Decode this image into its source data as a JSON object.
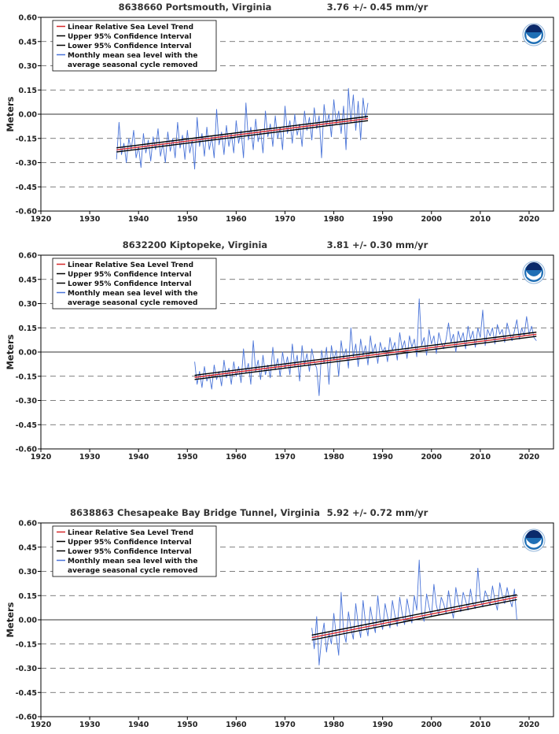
{
  "colors": {
    "trend": "#d62728",
    "ci": "#000000",
    "monthly": "#4a74d8",
    "grid_dash": "#555555",
    "zero_line": "#333333",
    "noaa_blue": "#1f6fb5",
    "noaa_dark": "#0b2a6b"
  },
  "legend_entries": [
    "Linear Relative Sea Level Trend",
    "Upper 95% Confidence Interval",
    "Lower 95% Confidence Interval",
    "Monthly mean sea level with the",
    "average seasonal cycle removed"
  ],
  "chart_data": [
    {
      "type": "line",
      "title": "8638660 Portsmouth, Virginia",
      "rate_label": "3.76 +/-  0.45 mm/yr",
      "ylabel": "Meters",
      "xlim": [
        1920,
        2025
      ],
      "ylim": [
        -0.6,
        0.6
      ],
      "xticks": [
        "1920",
        "1930",
        "1940",
        "1950",
        "1960",
        "1970",
        "1980",
        "1990",
        "2000",
        "2010",
        "2020"
      ],
      "yticks": [
        "0.60",
        "0.45",
        "0.30",
        "0.15",
        "0.00",
        "-0.15",
        "-0.30",
        "-0.45",
        "-0.60"
      ],
      "grid": "dashed horizontal",
      "legend_position": "top-left",
      "trend": {
        "x": [
          1935.5,
          1987.0
        ],
        "y": [
          -0.221,
          -0.027
        ]
      },
      "upper_ci": {
        "x": [
          1935.5,
          1987.0
        ],
        "y": [
          -0.208,
          -0.014
        ]
      },
      "lower_ci": {
        "x": [
          1935.5,
          1987.0
        ],
        "y": [
          -0.234,
          -0.04
        ]
      },
      "monthly": {
        "x": [
          1935.5,
          1936,
          1936.5,
          1937,
          1937.5,
          1938,
          1938.5,
          1939,
          1939.5,
          1940,
          1940.5,
          1941,
          1941.5,
          1942,
          1942.5,
          1943,
          1943.5,
          1944,
          1944.5,
          1945,
          1945.5,
          1946,
          1946.5,
          1947,
          1947.5,
          1948,
          1948.5,
          1949,
          1949.5,
          1950,
          1950.5,
          1951,
          1951.5,
          1952,
          1952.5,
          1953,
          1953.5,
          1954,
          1954.5,
          1955,
          1955.5,
          1956,
          1956.5,
          1957,
          1957.5,
          1958,
          1958.5,
          1959,
          1959.5,
          1960,
          1960.5,
          1961,
          1961.5,
          1962,
          1962.5,
          1963,
          1963.5,
          1964,
          1964.5,
          1965,
          1965.5,
          1966,
          1966.5,
          1967,
          1967.5,
          1968,
          1968.5,
          1969,
          1969.5,
          1970,
          1970.5,
          1971,
          1971.5,
          1972,
          1972.5,
          1973,
          1973.5,
          1974,
          1974.5,
          1975,
          1975.5,
          1976,
          1976.5,
          1977,
          1977.5,
          1978,
          1978.5,
          1979,
          1979.5,
          1980,
          1980.5,
          1981,
          1981.5,
          1982,
          1982.5,
          1983,
          1983.5,
          1984,
          1984.5,
          1985,
          1985.5,
          1986,
          1986.5,
          1987
        ],
        "y": [
          -0.28,
          -0.05,
          -0.25,
          -0.18,
          -0.3,
          -0.15,
          -0.22,
          -0.1,
          -0.27,
          -0.2,
          -0.33,
          -0.12,
          -0.24,
          -0.16,
          -0.29,
          -0.14,
          -0.22,
          -0.09,
          -0.26,
          -0.18,
          -0.3,
          -0.11,
          -0.23,
          -0.15,
          -0.27,
          -0.05,
          -0.21,
          -0.13,
          -0.28,
          -0.1,
          -0.24,
          -0.16,
          -0.34,
          -0.02,
          -0.2,
          -0.12,
          -0.26,
          -0.08,
          -0.22,
          -0.14,
          -0.27,
          0.03,
          -0.19,
          -0.11,
          -0.25,
          -0.07,
          -0.2,
          -0.12,
          -0.24,
          -0.04,
          -0.18,
          -0.1,
          -0.27,
          0.07,
          -0.16,
          -0.08,
          -0.22,
          -0.03,
          -0.17,
          -0.1,
          -0.24,
          0.02,
          -0.14,
          -0.06,
          -0.2,
          -0.01,
          -0.15,
          -0.08,
          -0.22,
          0.05,
          -0.12,
          -0.04,
          -0.18,
          0.0,
          -0.13,
          -0.06,
          -0.2,
          0.02,
          -0.1,
          -0.02,
          -0.16,
          0.04,
          -0.09,
          -0.01,
          -0.27,
          0.06,
          -0.07,
          0.0,
          -0.14,
          0.09,
          -0.06,
          0.02,
          -0.12,
          0.05,
          -0.22,
          0.16,
          -0.05,
          0.12,
          -0.1,
          0.08,
          -0.16,
          0.1,
          -0.03,
          0.07
        ]
      }
    },
    {
      "type": "line",
      "title": "8632200 Kiptopeke, Virginia",
      "rate_label": "3.81 +/-  0.30 mm/yr",
      "ylabel": "Meters",
      "xlim": [
        1920,
        2025
      ],
      "ylim": [
        -0.6,
        0.6
      ],
      "xticks": [
        "1920",
        "1930",
        "1940",
        "1950",
        "1960",
        "1970",
        "1980",
        "1990",
        "2000",
        "2010",
        "2020"
      ],
      "yticks": [
        "0.60",
        "0.45",
        "0.30",
        "0.15",
        "0.00",
        "-0.15",
        "-0.30",
        "-0.45",
        "-0.60"
      ],
      "grid": "dashed horizontal",
      "legend_position": "top-left",
      "trend": {
        "x": [
          1951.5,
          2021.5
        ],
        "y": [
          -0.157,
          0.11
        ]
      },
      "upper_ci": {
        "x": [
          1951.5,
          2021.5
        ],
        "y": [
          -0.144,
          0.123
        ]
      },
      "lower_ci": {
        "x": [
          1951.5,
          2021.5
        ],
        "y": [
          -0.17,
          0.097
        ]
      },
      "monthly": {
        "x": [
          1951.5,
          1952,
          1952.5,
          1953,
          1953.5,
          1954,
          1954.5,
          1955,
          1955.5,
          1956,
          1956.5,
          1957,
          1957.5,
          1958,
          1958.5,
          1959,
          1959.5,
          1960,
          1960.5,
          1961,
          1961.5,
          1962,
          1962.5,
          1963,
          1963.5,
          1964,
          1964.5,
          1965,
          1965.5,
          1966,
          1966.5,
          1967,
          1967.5,
          1968,
          1968.5,
          1969,
          1969.5,
          1970,
          1970.5,
          1971,
          1971.5,
          1972,
          1972.5,
          1973,
          1973.5,
          1974,
          1974.5,
          1975,
          1975.5,
          1976,
          1976.5,
          1977,
          1977.5,
          1978,
          1978.5,
          1979,
          1979.5,
          1980,
          1980.5,
          1981,
          1981.5,
          1982,
          1982.5,
          1983,
          1983.5,
          1984,
          1984.5,
          1985,
          1985.5,
          1986,
          1986.5,
          1987,
          1987.5,
          1988,
          1988.5,
          1989,
          1989.5,
          1990,
          1990.5,
          1991,
          1991.5,
          1992,
          1992.5,
          1993,
          1993.5,
          1994,
          1994.5,
          1995,
          1995.5,
          1996,
          1996.5,
          1997,
          1997.5,
          1998,
          1998.5,
          1999,
          1999.5,
          2000,
          2000.5,
          2001,
          2001.5,
          2002,
          2002.5,
          2003,
          2003.5,
          2004,
          2004.5,
          2005,
          2005.5,
          2006,
          2006.5,
          2007,
          2007.5,
          2008,
          2008.5,
          2009,
          2009.5,
          2010,
          2010.5,
          2011,
          2011.5,
          2012,
          2012.5,
          2013,
          2013.5,
          2014,
          2014.5,
          2015,
          2015.5,
          2016,
          2016.5,
          2017,
          2017.5,
          2018,
          2018.5,
          2019,
          2019.5,
          2020,
          2020.5,
          2021,
          2021.5
        ],
        "y": [
          -0.06,
          -0.2,
          -0.12,
          -0.22,
          -0.09,
          -0.18,
          -0.14,
          -0.23,
          -0.08,
          -0.17,
          -0.12,
          -0.21,
          -0.05,
          -0.16,
          -0.1,
          -0.2,
          -0.06,
          -0.15,
          -0.09,
          -0.19,
          0.02,
          -0.13,
          -0.07,
          -0.2,
          0.07,
          -0.12,
          -0.05,
          -0.17,
          -0.02,
          -0.14,
          -0.08,
          -0.16,
          0.03,
          -0.11,
          -0.04,
          -0.15,
          0.0,
          -0.1,
          -0.03,
          -0.14,
          0.05,
          -0.09,
          -0.02,
          -0.18,
          0.04,
          -0.08,
          -0.01,
          -0.12,
          0.02,
          -0.06,
          -0.1,
          -0.27,
          0.01,
          -0.07,
          0.03,
          -0.2,
          0.04,
          -0.05,
          0.01,
          -0.15,
          0.07,
          -0.04,
          0.02,
          -0.1,
          0.15,
          -0.03,
          0.05,
          -0.09,
          0.08,
          -0.02,
          0.04,
          -0.08,
          0.1,
          -0.01,
          0.05,
          -0.07,
          0.06,
          0.0,
          0.03,
          -0.06,
          0.09,
          0.01,
          0.06,
          -0.05,
          0.12,
          0.02,
          0.07,
          -0.04,
          0.1,
          0.03,
          0.08,
          -0.03,
          0.33,
          0.04,
          0.09,
          -0.02,
          0.14,
          0.05,
          0.1,
          -0.01,
          0.12,
          0.06,
          0.02,
          0.08,
          0.18,
          0.06,
          0.11,
          0.0,
          0.13,
          0.07,
          0.12,
          0.02,
          0.16,
          0.08,
          0.13,
          0.03,
          0.15,
          0.09,
          0.26,
          0.04,
          0.14,
          0.1,
          0.15,
          0.05,
          0.17,
          0.11,
          0.14,
          0.06,
          0.18,
          0.12,
          0.07,
          0.13,
          0.2,
          0.08,
          0.15,
          0.1,
          0.22,
          0.11,
          0.16,
          0.09,
          0.07
        ]
      }
    },
    {
      "type": "line",
      "title": "8638863 Chesapeake Bay Bridge Tunnel, Virginia",
      "rate_label": "5.92 +/-  0.72 mm/yr",
      "ylabel": "Meters",
      "xlim": [
        1920,
        2025
      ],
      "ylim": [
        -0.6,
        0.6
      ],
      "xticks": [
        "1920",
        "1930",
        "1940",
        "1950",
        "1960",
        "1970",
        "1980",
        "1990",
        "2000",
        "2010",
        "2020"
      ],
      "yticks": [
        "0.60",
        "0.45",
        "0.30",
        "0.15",
        "0.00",
        "-0.15",
        "-0.30",
        "-0.45",
        "-0.60"
      ],
      "grid": "dashed horizontal",
      "legend_position": "top-left",
      "trend": {
        "x": [
          1975.5,
          2017.5
        ],
        "y": [
          -0.11,
          0.14
        ]
      },
      "upper_ci": {
        "x": [
          1975.5,
          2017.5
        ],
        "y": [
          -0.095,
          0.155
        ]
      },
      "lower_ci": {
        "x": [
          1975.5,
          2017.5
        ],
        "y": [
          -0.125,
          0.125
        ]
      },
      "monthly": {
        "x": [
          1975.5,
          1976,
          1976.5,
          1977,
          1977.5,
          1978,
          1978.5,
          1979,
          1979.5,
          1980,
          1980.5,
          1981,
          1981.5,
          1982,
          1982.5,
          1983,
          1983.5,
          1984,
          1984.5,
          1985,
          1985.5,
          1986,
          1986.5,
          1987,
          1987.5,
          1988,
          1988.5,
          1989,
          1989.5,
          1990,
          1990.5,
          1991,
          1991.5,
          1992,
          1992.5,
          1993,
          1993.5,
          1994,
          1994.5,
          1995,
          1995.5,
          1996,
          1996.5,
          1997,
          1997.5,
          1998,
          1998.5,
          1999,
          1999.5,
          2000,
          2000.5,
          2001,
          2001.5,
          2002,
          2002.5,
          2003,
          2003.5,
          2004,
          2004.5,
          2005,
          2005.5,
          2006,
          2006.5,
          2007,
          2007.5,
          2008,
          2008.5,
          2009,
          2009.5,
          2010,
          2010.5,
          2011,
          2011.5,
          2012,
          2012.5,
          2013,
          2013.5,
          2014,
          2014.5,
          2015,
          2015.5,
          2016,
          2016.5,
          2017,
          2017.5
        ],
        "y": [
          -0.05,
          -0.18,
          0.02,
          -0.28,
          -0.12,
          -0.02,
          -0.2,
          -0.08,
          -0.15,
          0.04,
          -0.1,
          -0.22,
          0.17,
          -0.07,
          -0.14,
          0.05,
          -0.05,
          -0.12,
          0.1,
          -0.03,
          -0.11,
          0.12,
          -0.02,
          -0.1,
          0.08,
          -0.01,
          -0.08,
          0.15,
          0.0,
          -0.06,
          0.1,
          0.02,
          -0.05,
          0.12,
          0.03,
          -0.04,
          0.14,
          0.04,
          -0.03,
          0.13,
          0.05,
          -0.02,
          0.15,
          0.06,
          0.37,
          0.04,
          -0.01,
          0.16,
          0.08,
          0.02,
          0.22,
          0.09,
          0.03,
          0.14,
          0.1,
          0.04,
          0.18,
          0.08,
          0.01,
          0.2,
          0.11,
          0.05,
          0.17,
          0.12,
          0.06,
          0.19,
          0.1,
          0.07,
          0.32,
          0.13,
          0.08,
          0.18,
          0.14,
          0.09,
          0.21,
          0.12,
          0.06,
          0.23,
          0.15,
          0.1,
          0.2,
          0.13,
          0.08,
          0.19,
          0.0
        ]
      }
    }
  ]
}
